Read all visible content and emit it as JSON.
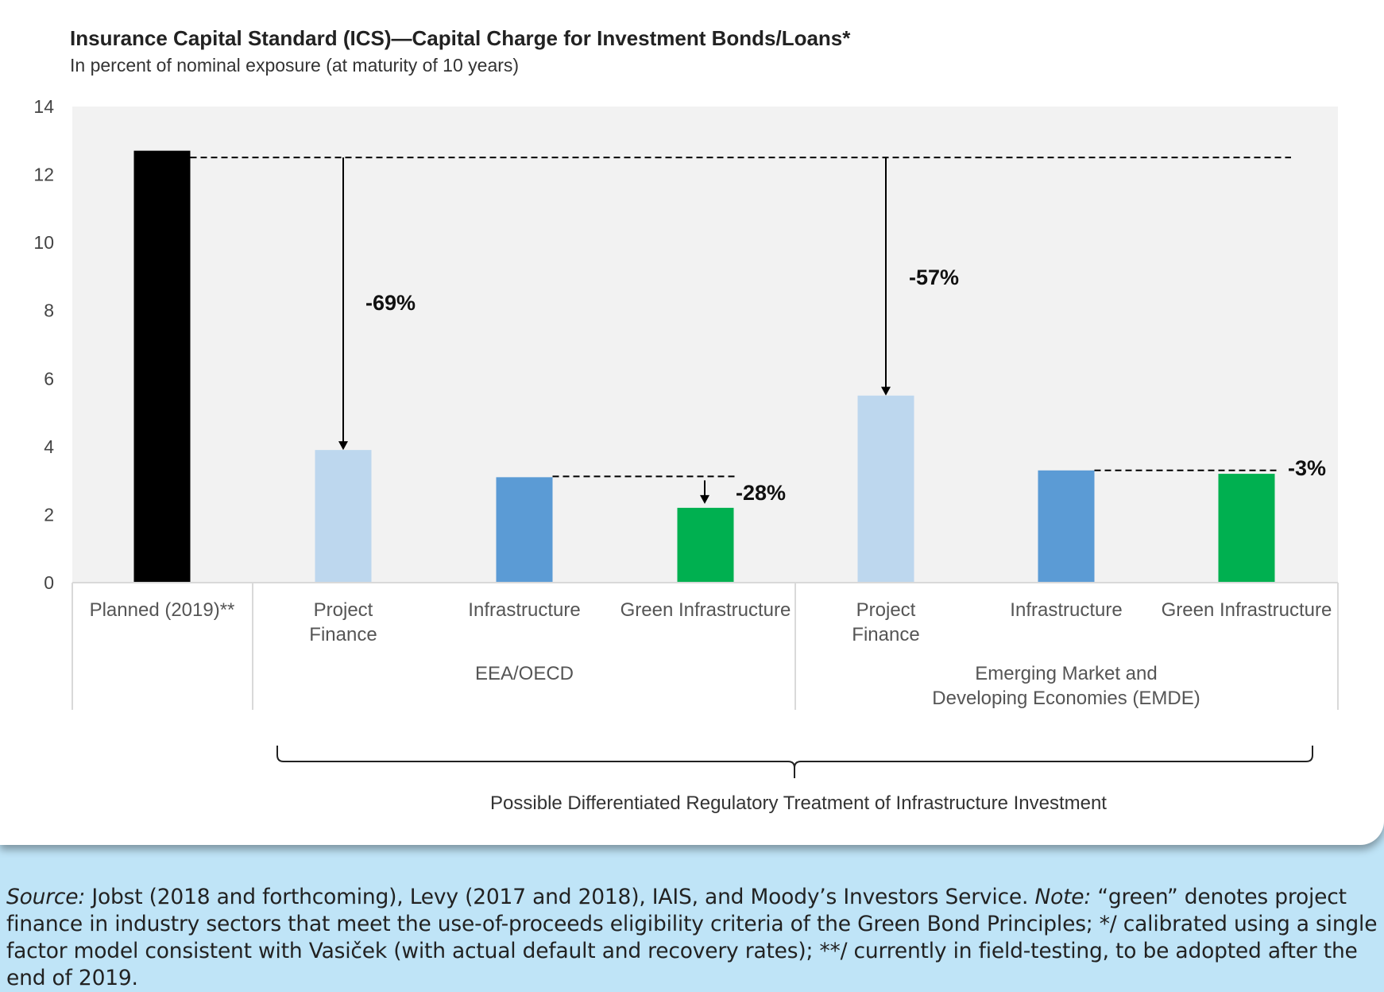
{
  "chart_data": {
    "type": "bar",
    "title": "Insurance Capital Standard (ICS)—Capital Charge for Investment Bonds/Loans*",
    "subtitle": "In percent of nominal exposure (at maturity of 10 years)",
    "ylim": [
      0,
      14
    ],
    "yticks": [
      "0",
      "2",
      "4",
      "6",
      "8",
      "10",
      "12",
      "14"
    ],
    "grid": false,
    "categories": [
      {
        "label": "Planned (2019)**",
        "group": "",
        "value": 12.7,
        "color": "#000000"
      },
      {
        "label": "Project\nFinance",
        "group": "EEA/OECD",
        "value": 3.9,
        "color": "#bdd7ee"
      },
      {
        "label": "Infrastructure",
        "group": "EEA/OECD",
        "value": 3.1,
        "color": "#5b9bd5"
      },
      {
        "label": "Green Infrastructure",
        "group": "EEA/OECD",
        "value": 2.2,
        "color": "#00b050"
      },
      {
        "label": "Project\nFinance",
        "group": "Emerging Market and Developing Economies (EMDE)",
        "value": 5.5,
        "color": "#bdd7ee"
      },
      {
        "label": "Infrastructure",
        "group": "Emerging Market and Developing Economies (EMDE)",
        "value": 3.3,
        "color": "#5b9bd5"
      },
      {
        "label": "Green Infrastructure",
        "group": "Emerging Market and Developing Economies (EMDE)",
        "value": 3.2,
        "color": "#00b050"
      }
    ],
    "groups": [
      {
        "label": "EEA/OECD"
      },
      {
        "label": "Emerging Market and\nDeveloping Economies (EMDE)"
      }
    ],
    "reference_level": 12.5,
    "annotations": [
      {
        "text": "-69%",
        "from_value": 12.5,
        "to_value": 3.9
      },
      {
        "text": "-28%",
        "from_value": 3.1,
        "to_value": 2.2
      },
      {
        "text": "-57%",
        "from_value": 12.5,
        "to_value": 5.5
      },
      {
        "text": "-3%",
        "from_value": 3.3,
        "to_value": 3.2
      }
    ],
    "bracket_label": "Possible Differentiated Regulatory Treatment of Infrastructure Investment"
  },
  "footer": {
    "source_label": "Source:",
    "source_text": " Jobst (2018 and forthcoming), Levy (2017 and 2018), IAIS, and Moody’s Investors Service. ",
    "note_label": "Note:",
    "note_text": " “green” denotes project finance in industry sectors that meet the use-of-proceeds eligibility criteria of the Green Bond Principles; */ calibrated using a single factor model consistent with Vasiček (with actual default and recovery rates); **/ currently in field-testing, to be adopted after the end of 2019."
  },
  "colors": {
    "plot_background": "#f2f2f2",
    "page_background": "#bfe4f7"
  }
}
